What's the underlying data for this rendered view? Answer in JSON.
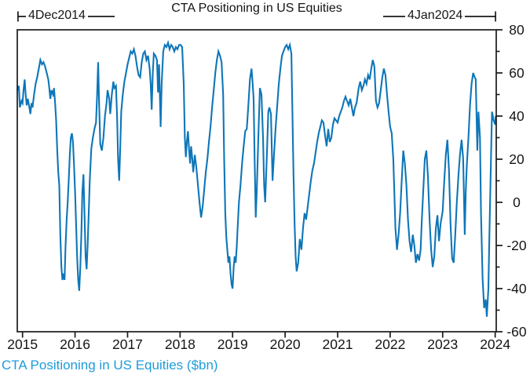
{
  "title": "CTA Positioning in US Equities",
  "caption": "CTA Positioning in US Equities ($bn)",
  "annotations": {
    "range_start": "4Dec2014",
    "range_end": "4Jan2024"
  },
  "colors": {
    "line": "#0E76B8",
    "caption": "#1E9CD9",
    "axis": "#1a1a1a"
  },
  "chart_data": {
    "type": "line",
    "title": "CTA Positioning in US Equities",
    "series_name": "CTA Positioning in US Equities ($bn)",
    "date_range": {
      "start": "4Dec2014",
      "end": "4Jan2024"
    },
    "x_ticks": [
      2015,
      2016,
      2017,
      2018,
      2019,
      2020,
      2021,
      2022,
      2023,
      2024
    ],
    "y_ticks": [
      80,
      60,
      40,
      20,
      0,
      -20,
      -40,
      -60
    ],
    "y_minor_ticks": [
      70,
      50,
      30,
      10,
      -10,
      -30,
      -50
    ],
    "xlim": [
      2014.9,
      2024.02
    ],
    "ylim": [
      -60,
      80
    ],
    "grid": false,
    "legend": "none",
    "points": [
      [
        2014.9,
        52
      ],
      [
        2014.93,
        54
      ],
      [
        2014.95,
        44
      ],
      [
        2014.98,
        47
      ],
      [
        2015.0,
        46
      ],
      [
        2015.02,
        52
      ],
      [
        2015.04,
        57
      ],
      [
        2015.06,
        50
      ],
      [
        2015.08,
        45
      ],
      [
        2015.1,
        48
      ],
      [
        2015.13,
        44
      ],
      [
        2015.15,
        41
      ],
      [
        2015.17,
        46
      ],
      [
        2015.19,
        44
      ],
      [
        2015.22,
        50
      ],
      [
        2015.25,
        55
      ],
      [
        2015.28,
        58
      ],
      [
        2015.31,
        62
      ],
      [
        2015.34,
        66
      ],
      [
        2015.37,
        64
      ],
      [
        2015.4,
        65
      ],
      [
        2015.43,
        63
      ],
      [
        2015.46,
        60
      ],
      [
        2015.49,
        57
      ],
      [
        2015.51,
        53
      ],
      [
        2015.53,
        48
      ],
      [
        2015.55,
        52
      ],
      [
        2015.58,
        50
      ],
      [
        2015.6,
        53
      ],
      [
        2015.62,
        46
      ],
      [
        2015.64,
        38
      ],
      [
        2015.66,
        25
      ],
      [
        2015.68,
        14
      ],
      [
        2015.7,
        8
      ],
      [
        2015.72,
        -15
      ],
      [
        2015.74,
        -30
      ],
      [
        2015.76,
        -36
      ],
      [
        2015.78,
        -33
      ],
      [
        2015.8,
        -36
      ],
      [
        2015.82,
        -20
      ],
      [
        2015.84,
        -8
      ],
      [
        2015.86,
        0
      ],
      [
        2015.88,
        10
      ],
      [
        2015.9,
        22
      ],
      [
        2015.92,
        30
      ],
      [
        2015.94,
        32
      ],
      [
        2015.96,
        28
      ],
      [
        2015.98,
        18
      ],
      [
        2016.0,
        5
      ],
      [
        2016.02,
        -10
      ],
      [
        2016.04,
        -25
      ],
      [
        2016.06,
        -36
      ],
      [
        2016.08,
        -41
      ],
      [
        2016.1,
        -30
      ],
      [
        2016.12,
        -15
      ],
      [
        2016.14,
        5
      ],
      [
        2016.16,
        13
      ],
      [
        2016.18,
        -5
      ],
      [
        2016.2,
        -25
      ],
      [
        2016.22,
        -31
      ],
      [
        2016.24,
        -20
      ],
      [
        2016.26,
        -5
      ],
      [
        2016.28,
        10
      ],
      [
        2016.31,
        25
      ],
      [
        2016.34,
        30
      ],
      [
        2016.37,
        34
      ],
      [
        2016.4,
        37
      ],
      [
        2016.42,
        50
      ],
      [
        2016.44,
        65
      ],
      [
        2016.46,
        45
      ],
      [
        2016.48,
        27
      ],
      [
        2016.51,
        24
      ],
      [
        2016.54,
        30
      ],
      [
        2016.57,
        40
      ],
      [
        2016.6,
        46
      ],
      [
        2016.62,
        52
      ],
      [
        2016.65,
        48
      ],
      [
        2016.67,
        41
      ],
      [
        2016.7,
        50
      ],
      [
        2016.73,
        56
      ],
      [
        2016.75,
        53
      ],
      [
        2016.78,
        54
      ],
      [
        2016.8,
        40
      ],
      [
        2016.82,
        20
      ],
      [
        2016.84,
        10
      ],
      [
        2016.86,
        25
      ],
      [
        2016.88,
        42
      ],
      [
        2016.91,
        50
      ],
      [
        2016.94,
        56
      ],
      [
        2016.97,
        60
      ],
      [
        2017.0,
        64
      ],
      [
        2017.03,
        67
      ],
      [
        2017.06,
        70
      ],
      [
        2017.09,
        69
      ],
      [
        2017.12,
        71
      ],
      [
        2017.15,
        68
      ],
      [
        2017.18,
        63
      ],
      [
        2017.21,
        59
      ],
      [
        2017.24,
        58
      ],
      [
        2017.27,
        65
      ],
      [
        2017.3,
        69
      ],
      [
        2017.33,
        70
      ],
      [
        2017.36,
        66
      ],
      [
        2017.39,
        68
      ],
      [
        2017.42,
        62
      ],
      [
        2017.44,
        55
      ],
      [
        2017.46,
        43
      ],
      [
        2017.48,
        60
      ],
      [
        2017.5,
        69
      ],
      [
        2017.53,
        68
      ],
      [
        2017.56,
        66
      ],
      [
        2017.58,
        51
      ],
      [
        2017.6,
        64
      ],
      [
        2017.63,
        35
      ],
      [
        2017.65,
        55
      ],
      [
        2017.68,
        70
      ],
      [
        2017.71,
        73
      ],
      [
        2017.74,
        72
      ],
      [
        2017.77,
        74
      ],
      [
        2017.8,
        71
      ],
      [
        2017.83,
        73
      ],
      [
        2017.86,
        72
      ],
      [
        2017.89,
        70
      ],
      [
        2017.92,
        72
      ],
      [
        2017.95,
        71
      ],
      [
        2017.98,
        73
      ],
      [
        2018.01,
        73
      ],
      [
        2018.04,
        72
      ],
      [
        2018.07,
        55
      ],
      [
        2018.09,
        30
      ],
      [
        2018.11,
        21
      ],
      [
        2018.13,
        28
      ],
      [
        2018.15,
        33
      ],
      [
        2018.17,
        25
      ],
      [
        2018.19,
        18
      ],
      [
        2018.21,
        26
      ],
      [
        2018.23,
        21
      ],
      [
        2018.25,
        14
      ],
      [
        2018.28,
        22
      ],
      [
        2018.31,
        16
      ],
      [
        2018.34,
        8
      ],
      [
        2018.37,
        0
      ],
      [
        2018.4,
        -7
      ],
      [
        2018.43,
        -2
      ],
      [
        2018.46,
        6
      ],
      [
        2018.49,
        14
      ],
      [
        2018.52,
        20
      ],
      [
        2018.55,
        28
      ],
      [
        2018.58,
        35
      ],
      [
        2018.61,
        44
      ],
      [
        2018.64,
        52
      ],
      [
        2018.67,
        60
      ],
      [
        2018.7,
        66
      ],
      [
        2018.73,
        70
      ],
      [
        2018.76,
        68
      ],
      [
        2018.79,
        65
      ],
      [
        2018.82,
        50
      ],
      [
        2018.84,
        20
      ],
      [
        2018.86,
        -5
      ],
      [
        2018.88,
        -16
      ],
      [
        2018.9,
        -22
      ],
      [
        2018.92,
        -28
      ],
      [
        2018.94,
        -25
      ],
      [
        2018.96,
        -33
      ],
      [
        2018.98,
        -38
      ],
      [
        2019.0,
        -40
      ],
      [
        2019.02,
        -30
      ],
      [
        2019.04,
        -25
      ],
      [
        2019.06,
        -28
      ],
      [
        2019.08,
        -20
      ],
      [
        2019.1,
        -10
      ],
      [
        2019.12,
        0
      ],
      [
        2019.15,
        8
      ],
      [
        2019.18,
        18
      ],
      [
        2019.21,
        26
      ],
      [
        2019.24,
        33
      ],
      [
        2019.27,
        34
      ],
      [
        2019.3,
        45
      ],
      [
        2019.33,
        57
      ],
      [
        2019.36,
        62
      ],
      [
        2019.38,
        56
      ],
      [
        2019.4,
        48
      ],
      [
        2019.42,
        20
      ],
      [
        2019.44,
        -7
      ],
      [
        2019.46,
        5
      ],
      [
        2019.49,
        30
      ],
      [
        2019.52,
        53
      ],
      [
        2019.55,
        50
      ],
      [
        2019.58,
        30
      ],
      [
        2019.6,
        8
      ],
      [
        2019.62,
        0
      ],
      [
        2019.65,
        20
      ],
      [
        2019.68,
        42
      ],
      [
        2019.7,
        44
      ],
      [
        2019.73,
        41
      ],
      [
        2019.76,
        10
      ],
      [
        2019.79,
        23
      ],
      [
        2019.82,
        35
      ],
      [
        2019.85,
        45
      ],
      [
        2019.88,
        55
      ],
      [
        2019.91,
        62
      ],
      [
        2019.94,
        68
      ],
      [
        2019.97,
        70
      ],
      [
        2020.0,
        72
      ],
      [
        2020.03,
        73
      ],
      [
        2020.06,
        71
      ],
      [
        2020.09,
        73
      ],
      [
        2020.12,
        69
      ],
      [
        2020.14,
        40
      ],
      [
        2020.16,
        13
      ],
      [
        2020.18,
        -10
      ],
      [
        2020.2,
        -25
      ],
      [
        2020.22,
        -32
      ],
      [
        2020.25,
        -28
      ],
      [
        2020.28,
        -17
      ],
      [
        2020.31,
        -22
      ],
      [
        2020.34,
        -12
      ],
      [
        2020.37,
        -5
      ],
      [
        2020.4,
        -8
      ],
      [
        2020.43,
        -2
      ],
      [
        2020.46,
        4
      ],
      [
        2020.49,
        10
      ],
      [
        2020.52,
        15
      ],
      [
        2020.55,
        18
      ],
      [
        2020.58,
        23
      ],
      [
        2020.61,
        28
      ],
      [
        2020.64,
        32
      ],
      [
        2020.67,
        35
      ],
      [
        2020.7,
        38
      ],
      [
        2020.73,
        37
      ],
      [
        2020.76,
        31
      ],
      [
        2020.79,
        26
      ],
      [
        2020.82,
        34
      ],
      [
        2020.85,
        28
      ],
      [
        2020.88,
        30
      ],
      [
        2020.91,
        36
      ],
      [
        2020.94,
        39
      ],
      [
        2020.97,
        38
      ],
      [
        2021.0,
        37
      ],
      [
        2021.03,
        40
      ],
      [
        2021.06,
        42
      ],
      [
        2021.09,
        44
      ],
      [
        2021.12,
        47
      ],
      [
        2021.15,
        49
      ],
      [
        2021.18,
        47
      ],
      [
        2021.21,
        45
      ],
      [
        2021.24,
        48
      ],
      [
        2021.27,
        44
      ],
      [
        2021.3,
        40
      ],
      [
        2021.33,
        44
      ],
      [
        2021.36,
        46
      ],
      [
        2021.4,
        53
      ],
      [
        2021.43,
        56
      ],
      [
        2021.46,
        52
      ],
      [
        2021.49,
        54
      ],
      [
        2021.52,
        57
      ],
      [
        2021.55,
        55
      ],
      [
        2021.58,
        59
      ],
      [
        2021.61,
        57
      ],
      [
        2021.64,
        62
      ],
      [
        2021.67,
        66
      ],
      [
        2021.7,
        63
      ],
      [
        2021.73,
        47
      ],
      [
        2021.76,
        44
      ],
      [
        2021.79,
        46
      ],
      [
        2021.82,
        52
      ],
      [
        2021.85,
        58
      ],
      [
        2021.88,
        62
      ],
      [
        2021.91,
        59
      ],
      [
        2021.94,
        50
      ],
      [
        2021.97,
        42
      ],
      [
        2022.0,
        35
      ],
      [
        2022.03,
        32
      ],
      [
        2022.06,
        20
      ],
      [
        2022.08,
        5
      ],
      [
        2022.1,
        -12
      ],
      [
        2022.13,
        -22
      ],
      [
        2022.16,
        -15
      ],
      [
        2022.19,
        -5
      ],
      [
        2022.22,
        10
      ],
      [
        2022.25,
        24
      ],
      [
        2022.28,
        18
      ],
      [
        2022.31,
        8
      ],
      [
        2022.34,
        -8
      ],
      [
        2022.37,
        -18
      ],
      [
        2022.4,
        -23
      ],
      [
        2022.43,
        -15
      ],
      [
        2022.46,
        -20
      ],
      [
        2022.49,
        -28
      ],
      [
        2022.52,
        -24
      ],
      [
        2022.55,
        -27
      ],
      [
        2022.58,
        -22
      ],
      [
        2022.6,
        -10
      ],
      [
        2022.63,
        5
      ],
      [
        2022.66,
        20
      ],
      [
        2022.69,
        24
      ],
      [
        2022.72,
        12
      ],
      [
        2022.75,
        -8
      ],
      [
        2022.78,
        -22
      ],
      [
        2022.81,
        -30
      ],
      [
        2022.84,
        -25
      ],
      [
        2022.87,
        -12
      ],
      [
        2022.9,
        -6
      ],
      [
        2022.93,
        -18
      ],
      [
        2022.96,
        -10
      ],
      [
        2023.0,
        -4
      ],
      [
        2023.03,
        10
      ],
      [
        2023.06,
        22
      ],
      [
        2023.09,
        29
      ],
      [
        2023.12,
        15
      ],
      [
        2023.15,
        -10
      ],
      [
        2023.18,
        -26
      ],
      [
        2023.21,
        -28
      ],
      [
        2023.24,
        -15
      ],
      [
        2023.27,
        0
      ],
      [
        2023.3,
        12
      ],
      [
        2023.33,
        22
      ],
      [
        2023.36,
        29
      ],
      [
        2023.39,
        20
      ],
      [
        2023.42,
        -15
      ],
      [
        2023.44,
        5
      ],
      [
        2023.46,
        17
      ],
      [
        2023.49,
        30
      ],
      [
        2023.52,
        45
      ],
      [
        2023.55,
        55
      ],
      [
        2023.58,
        60
      ],
      [
        2023.61,
        58
      ],
      [
        2023.63,
        57
      ],
      [
        2023.66,
        24
      ],
      [
        2023.68,
        42
      ],
      [
        2023.71,
        30
      ],
      [
        2023.73,
        -5
      ],
      [
        2023.76,
        -35
      ],
      [
        2023.79,
        -49
      ],
      [
        2023.82,
        -45
      ],
      [
        2023.84,
        -53
      ],
      [
        2023.87,
        -40
      ],
      [
        2023.89,
        -15
      ],
      [
        2023.92,
        20
      ],
      [
        2023.94,
        42
      ],
      [
        2023.97,
        38
      ],
      [
        2024.0,
        36
      ],
      [
        2024.01,
        40
      ]
    ]
  }
}
